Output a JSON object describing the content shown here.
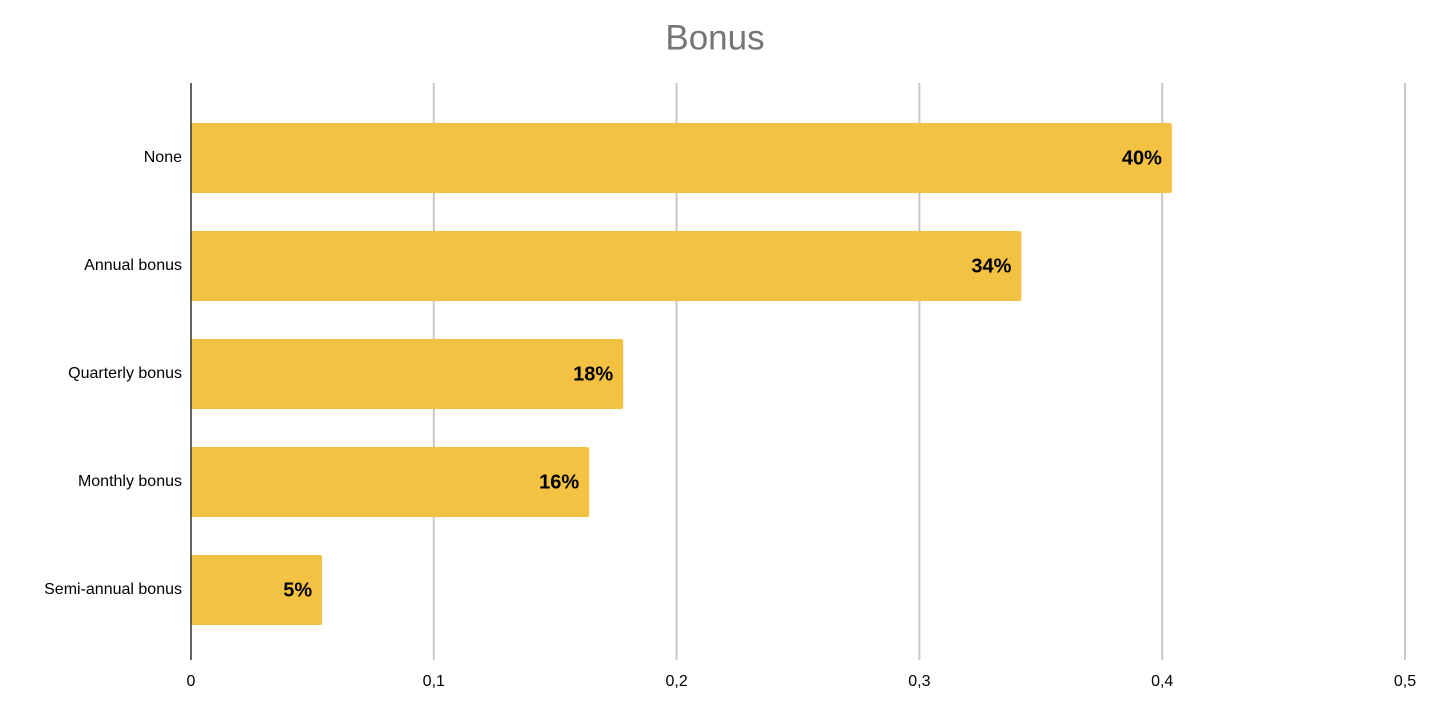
{
  "chart_data": {
    "type": "bar",
    "orientation": "horizontal",
    "title": "Bonus",
    "categories": [
      "None",
      "Annual bonus",
      "Quarterly bonus",
      "Monthly bonus",
      "Semi-annual bonus"
    ],
    "values": [
      0.404,
      0.342,
      0.178,
      0.164,
      0.054
    ],
    "value_labels": [
      "40%",
      "34%",
      "18%",
      "16%",
      "5%"
    ],
    "color": "#f4c242",
    "xlim": [
      0,
      0.5
    ],
    "xticks": [
      0,
      {
        "value": 0.1,
        "label": "0,1"
      },
      {
        "value": 0.2,
        "label": "0,2"
      },
      {
        "value": 0.3,
        "label": "0,3"
      },
      {
        "value": 0.4,
        "label": "0,4"
      },
      {
        "value": 0.5,
        "label": "0,5"
      }
    ],
    "grid": true
  }
}
